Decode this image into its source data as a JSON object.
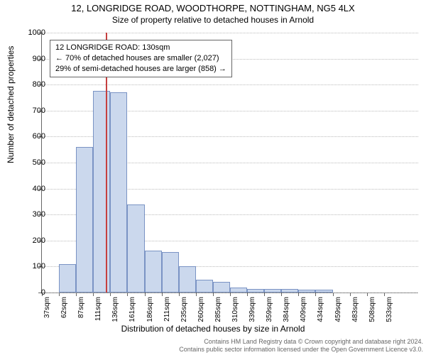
{
  "title": "12, LONGRIDGE ROAD, WOODTHORPE, NOTTINGHAM, NG5 4LX",
  "subtitle": "Size of property relative to detached houses in Arnold",
  "ylabel": "Number of detached properties",
  "xlabel": "Distribution of detached houses by size in Arnold",
  "info_box": {
    "line1": "12 LONGRIDGE ROAD: 130sqm",
    "line2": "← 70% of detached houses are smaller (2,027)",
    "line3": "29% of semi-detached houses are larger (858) →"
  },
  "footer": {
    "line1": "Contains HM Land Registry data © Crown copyright and database right 2024.",
    "line2": "Contains public sector information licensed under the Open Government Licence v3.0."
  },
  "chart": {
    "type": "bar",
    "ylim": [
      0,
      1000
    ],
    "yticks": [
      0,
      100,
      200,
      300,
      400,
      500,
      600,
      700,
      800,
      900,
      1000
    ],
    "xticks": [
      "37sqm",
      "62sqm",
      "87sqm",
      "111sqm",
      "136sqm",
      "161sqm",
      "186sqm",
      "211sqm",
      "235sqm",
      "260sqm",
      "285sqm",
      "310sqm",
      "339sqm",
      "359sqm",
      "384sqm",
      "409sqm",
      "434sqm",
      "459sqm",
      "483sqm",
      "508sqm",
      "533sqm"
    ],
    "values": [
      0,
      110,
      560,
      775,
      770,
      340,
      160,
      155,
      100,
      50,
      40,
      20,
      15,
      15,
      15,
      10,
      10,
      0,
      0,
      0,
      0,
      0
    ],
    "bar_color": "#cbd8ed",
    "bar_border": "#7a93c4",
    "grid_color": "#bbbbbb",
    "axis_color": "#666666",
    "marker_line_color": "#c63f3f",
    "marker_position": 130,
    "x_start": 37,
    "x_step": 25,
    "background_color": "#ffffff",
    "title_fontsize": 13,
    "label_fontsize": 12,
    "tick_fontsize": 11
  }
}
